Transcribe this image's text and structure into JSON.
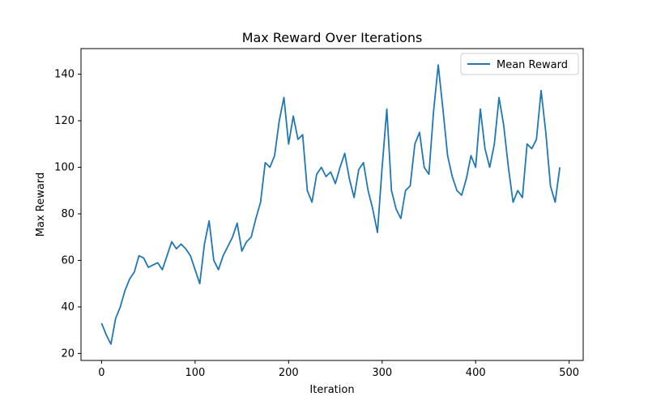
{
  "chart_data": {
    "type": "line",
    "title": "Max Reward Over Iterations",
    "xlabel": "Iteration",
    "ylabel": "Max Reward",
    "xlim": [
      -22,
      515
    ],
    "ylim": [
      17,
      151
    ],
    "xticks": [
      0,
      100,
      200,
      300,
      400,
      500
    ],
    "yticks": [
      20,
      40,
      60,
      80,
      100,
      120,
      140
    ],
    "grid": false,
    "legend_position": "top-right",
    "series_color": "#1f77b4",
    "series": [
      {
        "name": "Mean Reward",
        "x": [
          0,
          5,
          10,
          15,
          20,
          25,
          30,
          35,
          40,
          45,
          50,
          55,
          60,
          65,
          70,
          75,
          80,
          85,
          90,
          95,
          100,
          105,
          110,
          115,
          120,
          125,
          130,
          135,
          140,
          145,
          150,
          155,
          160,
          165,
          170,
          175,
          180,
          185,
          190,
          195,
          200,
          205,
          210,
          215,
          220,
          225,
          230,
          235,
          240,
          245,
          250,
          255,
          260,
          265,
          270,
          275,
          280,
          285,
          290,
          295,
          300,
          305,
          310,
          315,
          320,
          325,
          330,
          335,
          340,
          345,
          350,
          355,
          360,
          365,
          370,
          375,
          380,
          385,
          390,
          395,
          400,
          405,
          410,
          415,
          420,
          425,
          430,
          435,
          440,
          445,
          450,
          455,
          460,
          465,
          470,
          475,
          480,
          485,
          490
        ],
        "values": [
          33,
          28,
          24,
          35,
          40,
          47,
          52,
          55,
          62,
          61,
          57,
          58,
          59,
          56,
          62,
          68,
          65,
          67,
          65,
          62,
          56,
          50,
          67,
          77,
          60,
          56,
          62,
          66,
          70,
          76,
          64,
          68,
          70,
          78,
          85,
          102,
          100,
          105,
          120,
          130,
          110,
          122,
          112,
          114,
          90,
          85,
          97,
          100,
          96,
          98,
          93,
          100,
          106,
          95,
          87,
          99,
          102,
          90,
          82,
          72,
          100,
          125,
          90,
          82,
          78,
          90,
          92,
          110,
          115,
          100,
          97,
          124,
          144,
          125,
          105,
          96,
          90,
          88,
          95,
          105,
          100,
          125,
          108,
          100,
          110,
          130,
          118,
          100,
          85,
          90,
          87,
          110,
          108,
          112,
          133,
          115,
          92,
          85,
          100
        ]
      }
    ]
  }
}
